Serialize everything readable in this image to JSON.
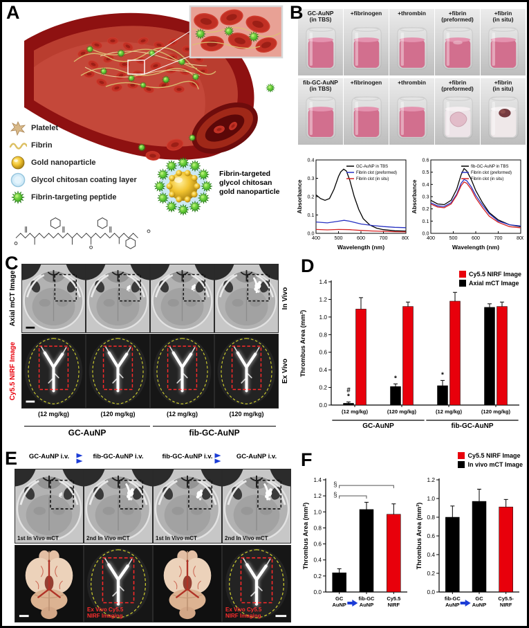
{
  "panels": {
    "A": {
      "label": "A",
      "legend": [
        {
          "label": "Platelet"
        },
        {
          "label": "Fibrin"
        },
        {
          "label": "Gold nanoparticle"
        },
        {
          "label": "Glycol chitosan coating layer"
        },
        {
          "label": "Fibrin-targeting peptide"
        }
      ],
      "nanoparticle_caption": "Fibrin-targeted\nglycol chitosan\ngold nanoparticle"
    },
    "B": {
      "label": "B",
      "vial_rows": [
        [
          "GC-AuNP\n(in TBS)",
          "+fibrinogen",
          "+thrombin",
          "+fibrin\n(preformed)",
          "+fibrin\n(in situ)"
        ],
        [
          "fib-GC-AuNP\n(in TBS)",
          "+fibrinogen",
          "+thrombin",
          "+fibrin\n(preformed)",
          "+fibrin\n(in situ)"
        ]
      ]
    },
    "C": {
      "label": "C",
      "row_labels_left": [
        "Axial mCT Image",
        "Cy5.5 NIRF Image"
      ],
      "row_labels_right": [
        "In Vivo",
        "Ex Vivo"
      ],
      "dose_labels": [
        "(12 mg/kg)",
        "(120 mg/kg)",
        "(12 mg/kg)",
        "(120 mg/kg)"
      ],
      "group_labels": [
        "GC-AuNP",
        "fib-GC-AuNP"
      ]
    },
    "D": {
      "label": "D",
      "legend": [
        {
          "label": "Cy5.5 NIRF Image",
          "color": "#e8000b"
        },
        {
          "label": "Axial mCT Image",
          "color": "#000000"
        }
      ]
    },
    "E": {
      "label": "E",
      "column_headers": [
        "GC-AuNP i.v.",
        "fib-GC-AuNP i.v.",
        "fib-GC-AuNP i.v.",
        "GC-AuNP i.v."
      ],
      "ct_labels": [
        "1st In Vivo mCT",
        "2nd In Vivo mCT",
        "1st In Vivo mCT",
        "2nd In Vivo mCT"
      ],
      "nirf_caption": "Ex Vivo Cy5.5\nNIRF Imaging"
    },
    "F": {
      "label": "F",
      "legend": [
        {
          "label": "Cy5.5 NIRF Image",
          "color": "#e8000b"
        },
        {
          "label": "In vivo mCT Image",
          "color": "#000000"
        }
      ]
    }
  },
  "colors": {
    "nirf_red": "#e8000b",
    "arrow_blue": "#1b3cd6",
    "spectra_blue": "#2832c2",
    "spectra_red": "#d42020"
  },
  "chart_data": [
    {
      "id": "spectrum_gc",
      "type": "line",
      "xlabel": "Wavelength (nm)",
      "ylabel": "Absorbance",
      "xlim": [
        400,
        800
      ],
      "ylim": [
        0.0,
        0.4
      ],
      "xticks": [
        400,
        500,
        600,
        700,
        800
      ],
      "yticks": [
        0.0,
        0.1,
        0.2,
        0.3,
        0.4
      ],
      "legend_position": "top-right",
      "series": [
        {
          "name": "GC-AuNP in TBS",
          "color": "#000000",
          "x": [
            400,
            420,
            440,
            460,
            480,
            500,
            510,
            523,
            535,
            550,
            570,
            590,
            610,
            640,
            670,
            700,
            750,
            800
          ],
          "y": [
            0.21,
            0.19,
            0.18,
            0.19,
            0.24,
            0.31,
            0.335,
            0.35,
            0.34,
            0.29,
            0.2,
            0.13,
            0.08,
            0.045,
            0.028,
            0.02,
            0.014,
            0.012
          ]
        },
        {
          "name": "Fibrin clot (preformed)",
          "color": "#2832c2",
          "x": [
            400,
            450,
            500,
            525,
            550,
            600,
            650,
            700,
            750,
            800
          ],
          "y": [
            0.062,
            0.057,
            0.066,
            0.071,
            0.066,
            0.051,
            0.043,
            0.037,
            0.033,
            0.031
          ]
        },
        {
          "name": "Fibrin clot (in situ)",
          "color": "#d42020",
          "x": [
            400,
            450,
            500,
            550,
            600,
            650,
            700,
            750,
            800
          ],
          "y": [
            0.021,
            0.019,
            0.021,
            0.02,
            0.016,
            0.013,
            0.011,
            0.009,
            0.008
          ]
        }
      ]
    },
    {
      "id": "spectrum_fib",
      "type": "line",
      "xlabel": "Wavelength (nm)",
      "ylabel": "Absorbance",
      "xlim": [
        400,
        800
      ],
      "ylim": [
        0.0,
        0.6
      ],
      "xticks": [
        400,
        500,
        600,
        700,
        800
      ],
      "yticks": [
        0.0,
        0.1,
        0.2,
        0.3,
        0.4,
        0.5,
        0.6
      ],
      "legend_position": "top-right",
      "series": [
        {
          "name": "fib-GC-AuNP in TBS",
          "color": "#000000",
          "x": [
            400,
            430,
            460,
            490,
            515,
            535,
            548,
            560,
            580,
            600,
            630,
            660,
            700,
            750,
            800
          ],
          "y": [
            0.27,
            0.24,
            0.235,
            0.27,
            0.36,
            0.48,
            0.53,
            0.51,
            0.44,
            0.35,
            0.25,
            0.17,
            0.11,
            0.07,
            0.055
          ]
        },
        {
          "name": "Fibrin clot (preformed)",
          "color": "#2832c2",
          "x": [
            400,
            430,
            460,
            490,
            515,
            535,
            548,
            560,
            580,
            600,
            630,
            660,
            700,
            750,
            800
          ],
          "y": [
            0.25,
            0.225,
            0.22,
            0.25,
            0.32,
            0.41,
            0.44,
            0.43,
            0.38,
            0.31,
            0.23,
            0.16,
            0.1,
            0.07,
            0.06
          ]
        },
        {
          "name": "Fibrin clot (in situ)",
          "color": "#d42020",
          "x": [
            400,
            430,
            460,
            490,
            515,
            535,
            548,
            560,
            580,
            600,
            630,
            660,
            700,
            750,
            800
          ],
          "y": [
            0.24,
            0.215,
            0.21,
            0.24,
            0.31,
            0.39,
            0.42,
            0.41,
            0.36,
            0.29,
            0.21,
            0.14,
            0.09,
            0.055,
            0.045
          ]
        }
      ]
    },
    {
      "id": "bars_d",
      "type": "bar",
      "ylabel": "Thrombus Area (mm²)",
      "ylim": [
        0.0,
        1.4
      ],
      "yticks": [
        0.0,
        0.2,
        0.4,
        0.6,
        0.8,
        1.0,
        1.2,
        1.4
      ],
      "categories": [
        "(12 mg/kg)",
        "(120 mg/kg)",
        "(12 mg/kg)",
        "(120 mg/kg)"
      ],
      "group_labels": [
        {
          "label": "GC-AuNP",
          "from": 0,
          "to": 1
        },
        {
          "label": "fib-GC-AuNP",
          "from": 2,
          "to": 3
        }
      ],
      "series": [
        {
          "name": "Axial mCT Image",
          "color": "#000000",
          "values": [
            0.02,
            0.21,
            0.22,
            1.11
          ],
          "errors": [
            0.015,
            0.03,
            0.06,
            0.04
          ],
          "annotations": [
            [
              "#",
              "*"
            ],
            [
              "*"
            ],
            [
              "*"
            ],
            []
          ]
        },
        {
          "name": "Cy5.5 NIRF Image",
          "color": "#e8000b",
          "values": [
            1.09,
            1.12,
            1.18,
            1.12
          ],
          "errors": [
            0.13,
            0.05,
            0.1,
            0.05
          ]
        }
      ]
    },
    {
      "id": "bars_f1",
      "type": "bar",
      "ylabel": "Thrombus Area (mm²)",
      "ylim": [
        0.0,
        1.4
      ],
      "yticks": [
        0.0,
        0.2,
        0.4,
        0.6,
        0.8,
        1.0,
        1.2,
        1.4
      ],
      "categories": [
        "GC\nAuNP",
        "fib-GC\nAuNP",
        "Cy5.5\nNIRF"
      ],
      "values": [
        0.24,
        1.03,
        0.97
      ],
      "colors": [
        "#000000",
        "#000000",
        "#e8000b"
      ],
      "errors": [
        0.05,
        0.09,
        0.13
      ],
      "x_arrow_between": [
        0,
        1
      ],
      "arrow_color": "#1b3cd6",
      "brackets": [
        {
          "from": 0,
          "to": 1,
          "y": 1.2,
          "label": "§"
        },
        {
          "from": 0,
          "to": 2,
          "y": 1.33,
          "label": "§"
        }
      ]
    },
    {
      "id": "bars_f2",
      "type": "bar",
      "ylabel": "Thrombus Area (mm²)",
      "ylim": [
        0.0,
        1.2
      ],
      "yticks": [
        0.0,
        0.2,
        0.4,
        0.6,
        0.8,
        1.0,
        1.2
      ],
      "categories": [
        "fib-GC\nAuNP",
        "GC\nAuNP",
        "Cy5.5-\nNIRF"
      ],
      "values": [
        0.8,
        0.97,
        0.91
      ],
      "colors": [
        "#000000",
        "#000000",
        "#e8000b"
      ],
      "errors": [
        0.12,
        0.13,
        0.08
      ],
      "x_arrow_between": [
        0,
        1
      ],
      "arrow_color": "#1b3cd6"
    }
  ]
}
